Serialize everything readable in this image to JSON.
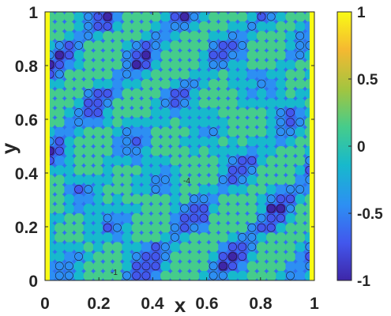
{
  "chart_data": {
    "type": "heatmap",
    "title": "",
    "xlabel": "x",
    "ylabel": "y",
    "xlim": [
      0,
      1
    ],
    "ylim": [
      0,
      1
    ],
    "xticks": [
      "0",
      "0.2",
      "0.4",
      "0.6",
      "0.8",
      "1"
    ],
    "yticks": [
      "0",
      "0.2",
      "0.4",
      "0.6",
      "0.8",
      "1"
    ],
    "colorbar": {
      "range": [
        -1,
        1
      ],
      "ticks": [
        "-1",
        "-0.5",
        "0",
        "0.5",
        "1"
      ],
      "colormap": "parula",
      "colors": [
        "#3e26a8",
        "#4257ed",
        "#2d8ff3",
        "#17b9cc",
        "#45cc8c",
        "#a2c540",
        "#f5b931",
        "#f9fb15"
      ]
    },
    "contour_levels": [
      -0.8,
      -0.6,
      -0.4,
      -0.2,
      0,
      0.2,
      0.4,
      0.6,
      0.8
    ],
    "inline_labels": [
      "-1",
      "-4",
      "-1"
    ],
    "description": ""
  }
}
